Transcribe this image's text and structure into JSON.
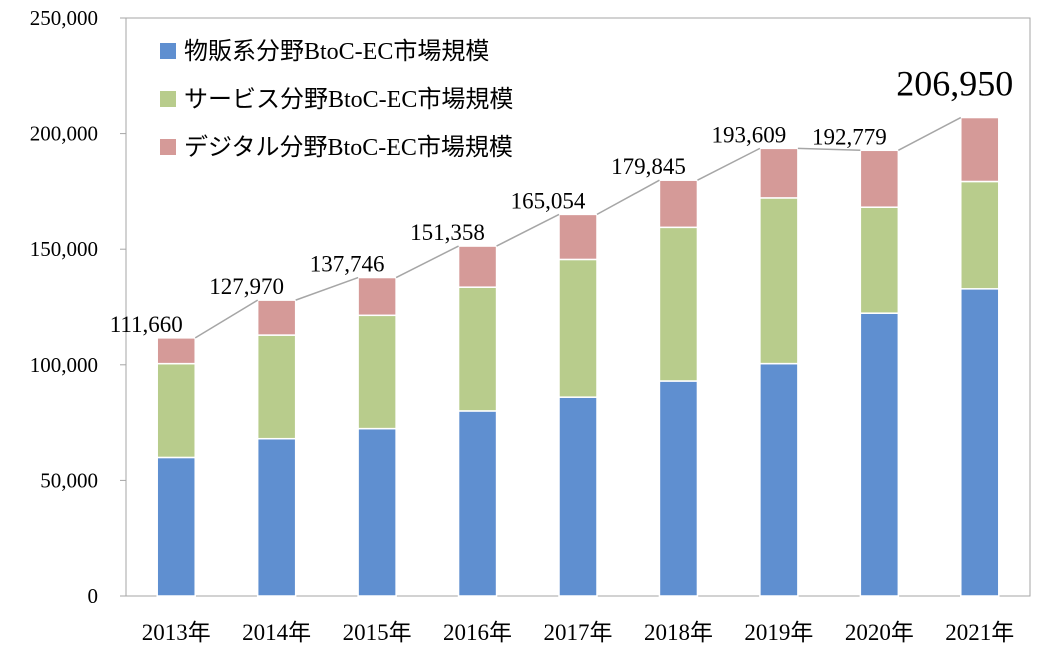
{
  "chart_data": {
    "type": "bar",
    "stacked": true,
    "categories": [
      "2013年",
      "2014年",
      "2015年",
      "2016年",
      "2017年",
      "2018年",
      "2019年",
      "2020年",
      "2021年"
    ],
    "series": [
      {
        "name": "物販系分野BtoC-EC市場規模",
        "color": "#5f8fd0",
        "values": [
          59931,
          68043,
          72398,
          80043,
          86008,
          92992,
          100515,
          122333,
          132865
        ]
      },
      {
        "name": "サービス分野BtoC-EC市場規模",
        "color": "#b8cc8c",
        "values": [
          40573,
          44816,
          49014,
          53532,
          59568,
          66471,
          71672,
          45832,
          46424
        ]
      },
      {
        "name": "デジタル分野BtoC-EC市場規模",
        "color": "#d59a98",
        "values": [
          11156,
          15111,
          16334,
          17783,
          19478,
          20382,
          21422,
          24614,
          27661
        ]
      }
    ],
    "totals": [
      111660,
      127970,
      137746,
      151358,
      165054,
      179845,
      193609,
      192779,
      206950
    ],
    "total_labels": [
      "111,660",
      "127,970",
      "137,746",
      "151,358",
      "165,054",
      "179,845",
      "193,609",
      "192,779",
      "206,950"
    ],
    "yticks": [
      0,
      50000,
      100000,
      150000,
      200000,
      250000
    ],
    "ytick_labels": [
      "0",
      "50,000",
      "100,000",
      "150,000",
      "200,000",
      "250,000"
    ],
    "ylim": [
      0,
      250000
    ],
    "title": "",
    "xlabel": "",
    "ylabel": "",
    "legend_position": "top-left",
    "grid": false,
    "trend_line_color": "#a6a6a6"
  }
}
